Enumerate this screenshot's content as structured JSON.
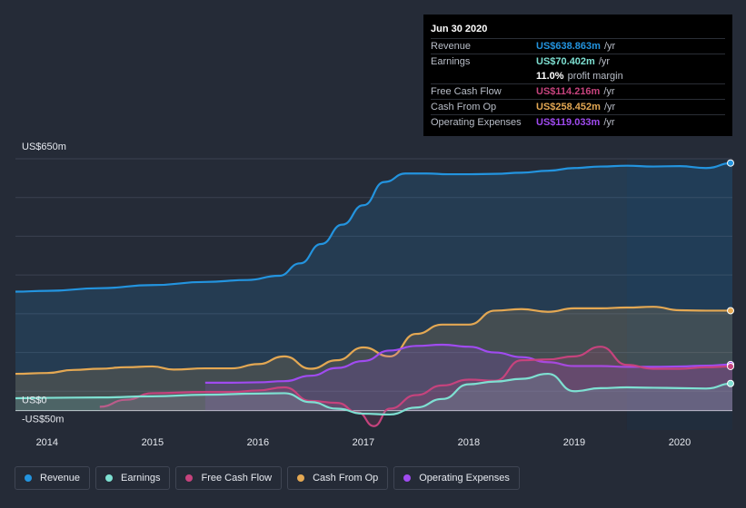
{
  "tooltip": {
    "date": "Jun 30 2020",
    "rows": [
      {
        "label": "Revenue",
        "value": "US$638.863m",
        "unit": "/yr",
        "color": "#2394df"
      },
      {
        "label": "Earnings",
        "value": "US$70.402m",
        "unit": "/yr",
        "color": "#7ee0d2"
      },
      {
        "label": "",
        "value": "11.0%",
        "unit": "profit margin",
        "color": "#ffffff"
      },
      {
        "label": "Free Cash Flow",
        "value": "US$114.216m",
        "unit": "/yr",
        "color": "#c6437d"
      },
      {
        "label": "Cash From Op",
        "value": "US$258.452m",
        "unit": "/yr",
        "color": "#e4a853"
      },
      {
        "label": "Operating Expenses",
        "value": "US$119.033m",
        "unit": "/yr",
        "color": "#a04bf0"
      }
    ]
  },
  "legend": [
    {
      "label": "Revenue",
      "color": "#2394df"
    },
    {
      "label": "Earnings",
      "color": "#7ee0d2"
    },
    {
      "label": "Free Cash Flow",
      "color": "#c6437d"
    },
    {
      "label": "Cash From Op",
      "color": "#e4a853"
    },
    {
      "label": "Operating Expenses",
      "color": "#a04bf0"
    }
  ],
  "chart_data": {
    "type": "line",
    "y_top_label": "US$650m",
    "y_zero_label": "US$0",
    "y_bottom_label": "-US$50m",
    "ylim": [
      -50,
      650
    ],
    "xlim": [
      2013.7,
      2020.5
    ],
    "x_tick_labels": [
      "2014",
      "2015",
      "2016",
      "2017",
      "2018",
      "2019",
      "2020"
    ],
    "x_ticks": [
      2014,
      2015,
      2016,
      2017,
      2018,
      2019,
      2020
    ],
    "forecast_shade_start": 2019.5,
    "series": [
      {
        "name": "Revenue",
        "color": "#2394df",
        "fill": true,
        "x": [
          2013.7,
          2014.0,
          2014.5,
          2015.0,
          2015.5,
          2015.9,
          2016.2,
          2016.4,
          2016.6,
          2016.8,
          2017.0,
          2017.2,
          2017.4,
          2017.6,
          2017.8,
          2018.0,
          2018.25,
          2018.5,
          2018.75,
          2019.0,
          2019.25,
          2019.5,
          2019.75,
          2020.0,
          2020.25,
          2020.5
        ],
        "y": [
          307,
          309,
          316,
          324,
          332,
          337,
          348,
          380,
          430,
          480,
          530,
          590,
          612,
          612,
          610,
          610,
          611,
          614,
          619,
          626,
          630,
          632,
          630,
          631,
          626,
          639
        ]
      },
      {
        "name": "Cash From Op",
        "color": "#e4a853",
        "fill": true,
        "x": [
          2013.7,
          2014.0,
          2014.25,
          2014.5,
          2014.75,
          2015.0,
          2015.2,
          2015.5,
          2015.75,
          2016.0,
          2016.25,
          2016.5,
          2016.75,
          2017.0,
          2017.25,
          2017.5,
          2017.75,
          2018.0,
          2018.25,
          2018.5,
          2018.75,
          2019.0,
          2019.25,
          2019.5,
          2019.75,
          2020.0,
          2020.25,
          2020.5
        ],
        "y": [
          95,
          97,
          105,
          108,
          112,
          114,
          106,
          109,
          109,
          120,
          140,
          108,
          130,
          163,
          140,
          198,
          222,
          222,
          258,
          262,
          255,
          264,
          264,
          266,
          268,
          259,
          258,
          258
        ]
      },
      {
        "name": "Operating Expenses",
        "color": "#a04bf0",
        "fill": true,
        "x": [
          2015.5,
          2015.75,
          2016.0,
          2016.25,
          2016.5,
          2016.75,
          2017.0,
          2017.25,
          2017.5,
          2017.75,
          2018.0,
          2018.25,
          2018.5,
          2018.75,
          2019.0,
          2019.25,
          2019.5,
          2019.75,
          2020.0,
          2020.25,
          2020.5
        ],
        "y": [
          72,
          72,
          73,
          76,
          90,
          110,
          128,
          155,
          167,
          170,
          165,
          150,
          138,
          125,
          115,
          115,
          113,
          113,
          114,
          116,
          119
        ]
      },
      {
        "name": "Free Cash Flow",
        "color": "#c6437d",
        "fill": true,
        "x": [
          2014.5,
          2014.75,
          2015.0,
          2015.5,
          2015.75,
          2016.0,
          2016.25,
          2016.5,
          2016.75,
          2016.95,
          2017.1,
          2017.25,
          2017.5,
          2017.75,
          2018.0,
          2018.25,
          2018.5,
          2018.75,
          2019.0,
          2019.25,
          2019.5,
          2019.75,
          2020.0,
          2020.25,
          2020.5
        ],
        "y": [
          10,
          28,
          45,
          48,
          48,
          52,
          60,
          25,
          20,
          -5,
          -40,
          5,
          40,
          65,
          80,
          77,
          130,
          132,
          140,
          165,
          118,
          108,
          108,
          112,
          114
        ]
      },
      {
        "name": "Earnings",
        "color": "#7ee0d2",
        "fill": true,
        "x": [
          2013.7,
          2014.0,
          2014.5,
          2015.0,
          2015.5,
          2016.0,
          2016.25,
          2016.5,
          2016.75,
          2017.0,
          2017.25,
          2017.5,
          2017.75,
          2018.0,
          2018.25,
          2018.5,
          2018.75,
          2019.0,
          2019.25,
          2019.5,
          2019.75,
          2020.0,
          2020.25,
          2020.5
        ],
        "y": [
          32,
          33,
          34,
          37,
          41,
          44,
          45,
          22,
          5,
          -8,
          -10,
          8,
          30,
          68,
          75,
          82,
          95,
          50,
          58,
          60,
          59,
          58,
          57,
          70
        ]
      }
    ],
    "grid": true,
    "legend_position": "bottom"
  }
}
